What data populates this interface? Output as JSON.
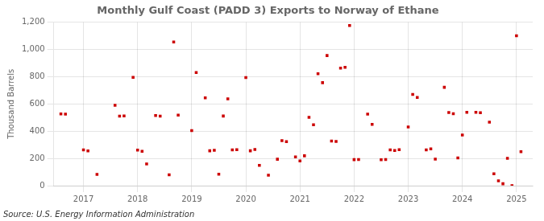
{
  "chart_data": {
    "type": "scatter",
    "title": "Monthly Gulf Coast (PADD 3) Exports to Norway of Ethane",
    "ylabel": "Thousand Barrels",
    "source": "Source: U.S. Energy Information Administration",
    "color": "#cc0000",
    "marker": "square",
    "grid": true,
    "legend": false,
    "xlim": [
      2016.45,
      2025.3
    ],
    "xticks": [
      2017,
      2018,
      2019,
      2020,
      2021,
      2022,
      2023,
      2024,
      2025
    ],
    "ylim": [
      0,
      1200
    ],
    "yticks": [
      0,
      200,
      400,
      600,
      800,
      {
        "value": 1000,
        "label": "1,000"
      },
      {
        "value": 1200,
        "label": "1,200"
      }
    ],
    "x": [
      2016.583,
      2016.667,
      2017.0,
      2017.083,
      2017.25,
      2017.583,
      2017.667,
      2017.75,
      2017.917,
      2018.0,
      2018.083,
      2018.167,
      2018.333,
      2018.417,
      2018.583,
      2018.667,
      2018.75,
      2019.0,
      2019.083,
      2019.25,
      2019.333,
      2019.417,
      2019.5,
      2019.583,
      2019.667,
      2019.75,
      2019.833,
      2020.0,
      2020.083,
      2020.167,
      2020.25,
      2020.417,
      2020.583,
      2020.667,
      2020.75,
      2020.917,
      2021.0,
      2021.083,
      2021.167,
      2021.25,
      2021.333,
      2021.417,
      2021.5,
      2021.583,
      2021.667,
      2021.75,
      2021.833,
      2021.917,
      2022.0,
      2022.083,
      2022.25,
      2022.333,
      2022.5,
      2022.583,
      2022.667,
      2022.75,
      2022.833,
      2023.0,
      2023.083,
      2023.167,
      2023.333,
      2023.417,
      2023.5,
      2023.667,
      2023.75,
      2023.833,
      2023.917,
      2024.0,
      2024.083,
      2024.25,
      2024.333,
      2024.5,
      2024.583,
      2024.667,
      2024.75,
      2024.833,
      2024.917,
      2025.0,
      2025.083
    ],
    "values": [
      527,
      525,
      263,
      255,
      83,
      590,
      510,
      512,
      795,
      261,
      252,
      159,
      515,
      510,
      80,
      1054,
      518,
      404,
      831,
      644,
      256,
      260,
      84,
      511,
      637,
      263,
      264,
      794,
      256,
      265,
      149,
      77,
      194,
      330,
      323,
      211,
      181,
      219,
      502,
      447,
      822,
      756,
      955,
      327,
      324,
      863,
      869,
      1175,
      191,
      192,
      525,
      450,
      190,
      192,
      262,
      258,
      264,
      431,
      670,
      647,
      262,
      270,
      195,
      722,
      537,
      528,
      203,
      372,
      538,
      538,
      535,
      466,
      87,
      35,
      14,
      200,
      0,
      1100,
      249
    ]
  }
}
